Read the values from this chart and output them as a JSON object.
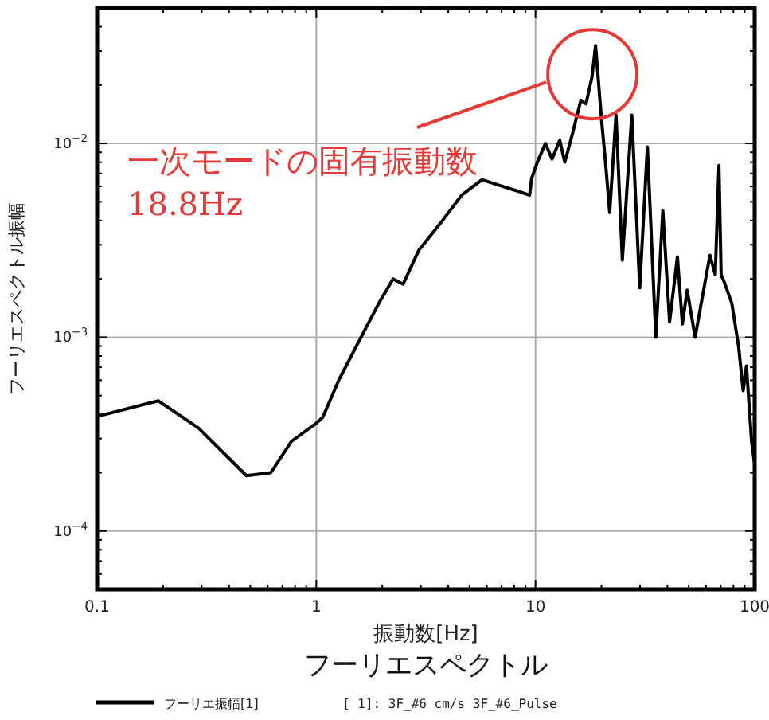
{
  "chart_data": {
    "type": "line",
    "title": "フーリエスペクトル",
    "xlabel": "振動数[Hz]",
    "ylabel": "フーリエスペクトル振幅",
    "log": "xy",
    "grid": true,
    "legend": "bottom",
    "marker": "none",
    "line_style": "solid",
    "xlim": [
      0.1,
      100
    ],
    "ylim": [
      5e-05,
      0.05
    ],
    "xticks": [
      0.1,
      1,
      10,
      100
    ],
    "yticks": [
      {
        "value": 0.0001,
        "label": "10$^{−4}$"
      },
      {
        "value": 0.001,
        "label": "10$^{−3}$"
      },
      {
        "value": 0.01,
        "label": "10$^{−2}$"
      }
    ],
    "annotations": [
      "一次モードの固有振動数\n18.8Hz",
      "[ 1]: 3F_#6 cm/s 3F_#6_Pulse"
    ],
    "series": [
      {
        "name": "フーリエ振幅[1]",
        "color": "#000000",
        "x": [
          0.1,
          0.19,
          0.29,
          0.48,
          0.62,
          0.77,
          1.0,
          1.07,
          1.27,
          1.6,
          1.93,
          2.24,
          2.49,
          2.93,
          3.7,
          4.6,
          5.7,
          7.1,
          8.2,
          9.4,
          9.6,
          10.2,
          11.1,
          11.9,
          12.9,
          13.6,
          14.8,
          16.1,
          17.0,
          18.1,
          18.8,
          20.0,
          20.8,
          21.8,
          23.3,
          24.9,
          27.5,
          29.9,
          32.4,
          35.4,
          38.1,
          40.9,
          44.4,
          46.8,
          49.2,
          53.5,
          62.5,
          66.1,
          68.7,
          70.3,
          73,
          78.6,
          84.4,
          88.6,
          91.7,
          96.8,
          99.5
        ],
        "values": [
          0.00039,
          0.00047,
          0.00034,
          0.000193,
          0.0002,
          0.00029,
          0.00036,
          0.000386,
          0.000605,
          0.001,
          0.0015,
          0.002,
          0.00188,
          0.0028,
          0.0039,
          0.0054,
          0.0065,
          0.006,
          0.0057,
          0.0054,
          0.0066,
          0.008,
          0.01,
          0.0083,
          0.0104,
          0.008,
          0.0114,
          0.0167,
          0.016,
          0.022,
          0.032,
          0.0133,
          0.0083,
          0.0044,
          0.014,
          0.0025,
          0.014,
          0.0018,
          0.0096,
          0.001,
          0.0045,
          0.0012,
          0.0026,
          0.00117,
          0.00175,
          0.001,
          0.00265,
          0.0021,
          0.0077,
          0.0021,
          0.0019,
          0.0015,
          0.0009,
          0.00053,
          0.00071,
          0.00029,
          0.00023
        ]
      }
    ]
  }
}
